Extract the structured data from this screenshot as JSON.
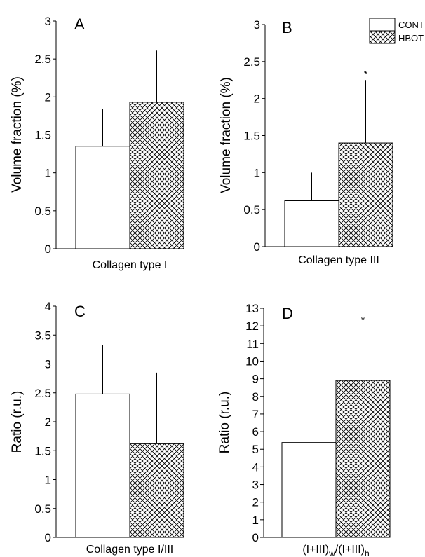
{
  "legend": {
    "position": "top-right",
    "entries": [
      {
        "label": "CONT",
        "fill": "plain"
      },
      {
        "label": "HBOT",
        "fill": "crosshatch"
      }
    ]
  },
  "chart_data": [
    {
      "type": "bar",
      "panel": "A",
      "xlabel": "Collagen type I",
      "ylabel": "Volume fraction (%)",
      "ylim": [
        0,
        3
      ],
      "yticks": [
        "0",
        "0.5",
        "1",
        "1.5",
        "2",
        "2.5",
        "3"
      ],
      "series": [
        {
          "name": "CONT",
          "value": 1.35,
          "error": 0.49,
          "sig": ""
        },
        {
          "name": "HBOT",
          "value": 1.93,
          "error": 0.68,
          "sig": ""
        }
      ]
    },
    {
      "type": "bar",
      "panel": "B",
      "xlabel": "Collagen type III",
      "ylabel": "Volume fraction (%)",
      "ylim": [
        0,
        3
      ],
      "yticks": [
        "0",
        "0.5",
        "1",
        "1.5",
        "2",
        "2.5",
        "3"
      ],
      "series": [
        {
          "name": "CONT",
          "value": 0.62,
          "error": 0.38,
          "sig": ""
        },
        {
          "name": "HBOT",
          "value": 1.4,
          "error": 0.85,
          "sig": "*"
        }
      ]
    },
    {
      "type": "bar",
      "panel": "C",
      "xlabel": "Collagen type I/III",
      "ylabel": "Ratio (r.u.)",
      "ylim": [
        0,
        4
      ],
      "yticks": [
        "0",
        "0.5",
        "1",
        "1.5",
        "2",
        "2.5",
        "3",
        "3.5",
        "4"
      ],
      "series": [
        {
          "name": "CONT",
          "value": 2.48,
          "error": 0.85,
          "sig": ""
        },
        {
          "name": "HBOT",
          "value": 1.62,
          "error": 1.23,
          "sig": ""
        }
      ]
    },
    {
      "type": "bar",
      "panel": "D",
      "xlabel_parts": [
        "(I+III)",
        "w",
        "/(I+III)",
        "h"
      ],
      "ylabel": "Ratio (r.u.)",
      "ylim": [
        0,
        13
      ],
      "yticks": [
        "0",
        "1",
        "2",
        "3",
        "4",
        "5",
        "6",
        "7",
        "8",
        "9",
        "10",
        "11",
        "12",
        "13"
      ],
      "series": [
        {
          "name": "CONT",
          "value": 5.38,
          "error": 1.82,
          "sig": ""
        },
        {
          "name": "HBOT",
          "value": 8.9,
          "error": 3.08,
          "sig": "*"
        }
      ]
    }
  ]
}
